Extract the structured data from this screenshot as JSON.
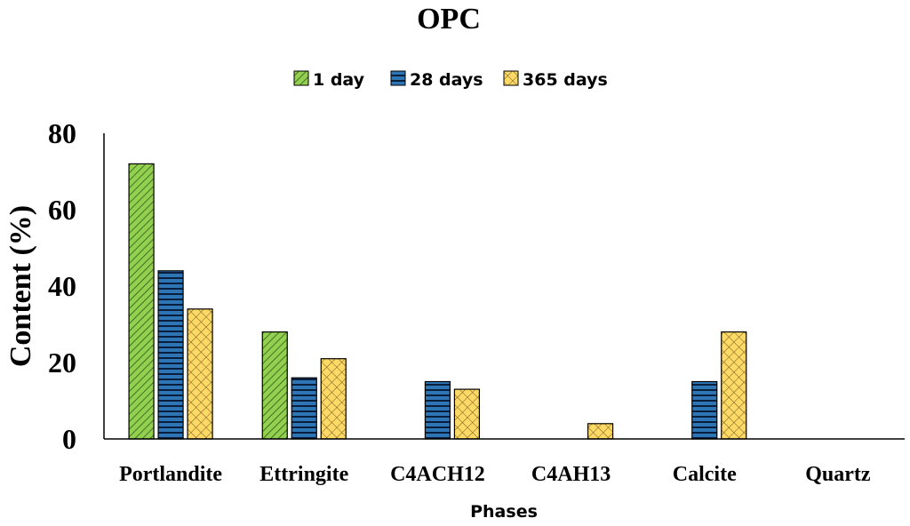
{
  "chart_data": {
    "type": "bar",
    "title": "OPC",
    "xlabel": "Phases",
    "ylabel": "Content (%)",
    "ylim": [
      0,
      80
    ],
    "yticks": [
      0,
      20,
      40,
      60,
      80
    ],
    "grid": false,
    "legend_position": "top",
    "categories": [
      "Portlandite",
      "Ettringite",
      "C4ACH12",
      "C4AH13",
      "Calcite",
      "Quartz"
    ],
    "series": [
      {
        "name": "1 day",
        "values": [
          72,
          28,
          0,
          0,
          0,
          0
        ],
        "color": "#92d050",
        "pattern": "diagonal-hatch"
      },
      {
        "name": "28 days",
        "values": [
          44,
          16,
          15,
          0,
          15,
          0
        ],
        "color": "#2e75b6",
        "pattern": "horizontal-lines"
      },
      {
        "name": "365 days",
        "values": [
          34,
          21,
          13,
          4,
          28,
          0
        ],
        "color": "#ffd966",
        "pattern": "crosshatch"
      }
    ]
  }
}
